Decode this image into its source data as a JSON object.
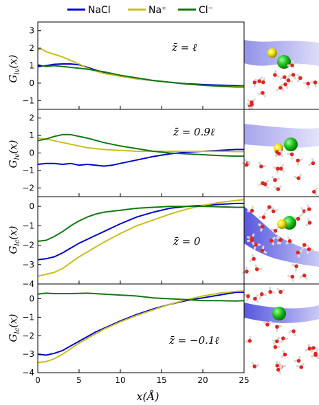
{
  "chart_data": {
    "type": "line",
    "legend": {
      "placement": "top",
      "entries": [
        {
          "name": "NaCl",
          "color": "#0000d0"
        },
        {
          "name": "Na⁺",
          "color": "#c8be1e"
        },
        {
          "name": "Cl⁻",
          "color": "#127812"
        }
      ]
    },
    "xlabel": "x(Å)",
    "xlim": [
      0,
      25
    ],
    "xticks": [
      0,
      5,
      10,
      15,
      20,
      25
    ],
    "panels": [
      {
        "ylabel": "G_lv(x)",
        "annotation": "z̄ = ℓ",
        "ylim": [
          -1.5,
          3.5
        ],
        "yticks": [
          -1,
          0,
          1,
          2,
          3
        ],
        "series": [
          {
            "name": "NaCl",
            "x": [
              0,
              1,
              2,
              3,
              4,
              5,
              6,
              8,
              10,
              12,
              14,
              16,
              18,
              20,
              22,
              24,
              25
            ],
            "y": [
              0.95,
              1.0,
              1.08,
              1.1,
              1.1,
              1.05,
              0.9,
              0.6,
              0.4,
              0.25,
              0.15,
              0.05,
              -0.03,
              -0.08,
              -0.12,
              -0.15,
              -0.15
            ]
          },
          {
            "name": "Na⁺",
            "x": [
              0,
              0.5,
              1,
              2,
              3,
              4,
              5,
              6,
              8,
              10,
              12,
              14,
              16,
              18,
              20,
              22,
              24,
              25
            ],
            "y": [
              1.9,
              1.95,
              1.8,
              1.65,
              1.5,
              1.3,
              1.1,
              0.85,
              0.55,
              0.4,
              0.25,
              0.15,
              0.05,
              -0.05,
              -0.12,
              -0.18,
              -0.2,
              -0.18
            ]
          },
          {
            "name": "Cl⁻",
            "x": [
              0,
              1,
              2,
              3,
              4,
              5,
              6,
              8,
              10,
              12,
              14,
              16,
              18,
              20,
              22,
              24,
              25
            ],
            "y": [
              1.05,
              0.95,
              1.0,
              0.95,
              0.9,
              0.85,
              0.8,
              0.65,
              0.45,
              0.3,
              0.15,
              0.05,
              -0.05,
              -0.12,
              -0.18,
              -0.22,
              -0.22
            ]
          }
        ]
      },
      {
        "ylabel": "G_lv(x)",
        "annotation": "z̄ = 0.9ℓ",
        "ylim": [
          -2.5,
          2.5
        ],
        "yticks": [
          -2,
          -1,
          0,
          1,
          2
        ],
        "series": [
          {
            "name": "NaCl",
            "x": [
              0,
              1,
              2,
              3,
              4,
              5,
              6,
              7,
              8,
              9,
              10,
              12,
              14,
              16,
              18,
              20,
              22,
              24,
              25
            ],
            "y": [
              -0.65,
              -0.6,
              -0.6,
              -0.65,
              -0.6,
              -0.7,
              -0.65,
              -0.7,
              -0.75,
              -0.7,
              -0.6,
              -0.4,
              -0.2,
              -0.05,
              0.05,
              0.1,
              0.15,
              0.2,
              0.2
            ]
          },
          {
            "name": "Na⁺",
            "x": [
              0,
              1,
              2,
              3,
              4,
              5,
              6,
              8,
              10,
              12,
              14,
              16,
              18,
              20,
              22,
              24,
              25
            ],
            "y": [
              0.85,
              0.8,
              0.7,
              0.6,
              0.5,
              0.4,
              0.3,
              0.2,
              0.15,
              0.1,
              0.1,
              0.1,
              0.1,
              0.1,
              0.1,
              0.08,
              0.08
            ]
          },
          {
            "name": "Cl⁻",
            "x": [
              0,
              1,
              2,
              3,
              4,
              5,
              6,
              8,
              10,
              12,
              14,
              16,
              18,
              20,
              22,
              24,
              25
            ],
            "y": [
              0.7,
              0.8,
              0.95,
              1.05,
              1.05,
              0.95,
              0.85,
              0.6,
              0.4,
              0.25,
              0.1,
              0.0,
              -0.05,
              -0.1,
              -0.15,
              -0.18,
              -0.18
            ]
          }
        ]
      },
      {
        "ylabel": "G_lc(x)",
        "annotation": "z̄ = 0",
        "ylim": [
          -4,
          0.5
        ],
        "yticks": [
          -4,
          -3,
          -2,
          -1,
          0
        ],
        "series": [
          {
            "name": "NaCl",
            "x": [
              0,
              1,
              2,
              3,
              4,
              5,
              6,
              7,
              8,
              10,
              12,
              14,
              16,
              18,
              20,
              22,
              24,
              25
            ],
            "y": [
              -2.75,
              -2.7,
              -2.6,
              -2.4,
              -2.15,
              -1.9,
              -1.7,
              -1.5,
              -1.3,
              -0.9,
              -0.55,
              -0.3,
              -0.1,
              0.0,
              0.05,
              0.1,
              0.15,
              0.15
            ]
          },
          {
            "name": "Na⁺",
            "x": [
              0,
              1,
              2,
              3,
              4,
              5,
              6,
              7,
              8,
              10,
              12,
              14,
              16,
              18,
              20,
              22,
              24,
              25
            ],
            "y": [
              -3.6,
              -3.5,
              -3.4,
              -3.2,
              -2.9,
              -2.6,
              -2.35,
              -2.1,
              -1.85,
              -1.4,
              -1.0,
              -0.7,
              -0.4,
              -0.15,
              0.05,
              0.2,
              0.3,
              0.35
            ]
          },
          {
            "name": "Cl⁻",
            "x": [
              0,
              1,
              2,
              3,
              4,
              5,
              6,
              7,
              8,
              10,
              12,
              14,
              16,
              18,
              20,
              22,
              24,
              25
            ],
            "y": [
              -1.8,
              -1.75,
              -1.55,
              -1.3,
              -1.0,
              -0.75,
              -0.55,
              -0.4,
              -0.3,
              -0.2,
              -0.1,
              -0.05,
              0.0,
              0.0,
              0.0,
              -0.02,
              -0.05,
              -0.05
            ]
          }
        ]
      },
      {
        "ylabel": "G_lc(x)",
        "annotation": "z̄ = −0.1ℓ",
        "ylim": [
          -4,
          0.8
        ],
        "yticks": [
          -4,
          -3,
          -2,
          -1,
          0
        ],
        "series": [
          {
            "name": "NaCl",
            "x": [
              0,
              1,
              2,
              3,
              4,
              5,
              6,
              7,
              8,
              10,
              12,
              14,
              16,
              18,
              20,
              22,
              24,
              25
            ],
            "y": [
              -3.0,
              -3.05,
              -2.95,
              -2.8,
              -2.55,
              -2.3,
              -2.05,
              -1.8,
              -1.6,
              -1.2,
              -0.85,
              -0.55,
              -0.3,
              -0.1,
              0.05,
              0.2,
              0.35,
              0.35
            ]
          },
          {
            "name": "Na⁺",
            "x": [
              0,
              1,
              2,
              3,
              4,
              5,
              6,
              7,
              8,
              10,
              12,
              14,
              16,
              18,
              20,
              22,
              24,
              25
            ],
            "y": [
              -3.45,
              -3.4,
              -3.25,
              -3.0,
              -2.7,
              -2.4,
              -2.15,
              -1.9,
              -1.65,
              -1.25,
              -0.9,
              -0.6,
              -0.3,
              -0.05,
              0.15,
              0.3,
              0.4,
              0.42
            ]
          },
          {
            "name": "Cl⁻",
            "x": [
              0,
              1,
              2,
              4,
              6,
              8,
              10,
              12,
              14,
              16,
              18,
              20,
              22,
              24,
              25
            ],
            "y": [
              0.25,
              0.3,
              0.28,
              0.28,
              0.3,
              0.25,
              0.2,
              0.15,
              0.05,
              0.0,
              -0.05,
              -0.1,
              -0.1,
              -0.12,
              -0.1
            ]
          }
        ]
      }
    ]
  }
}
